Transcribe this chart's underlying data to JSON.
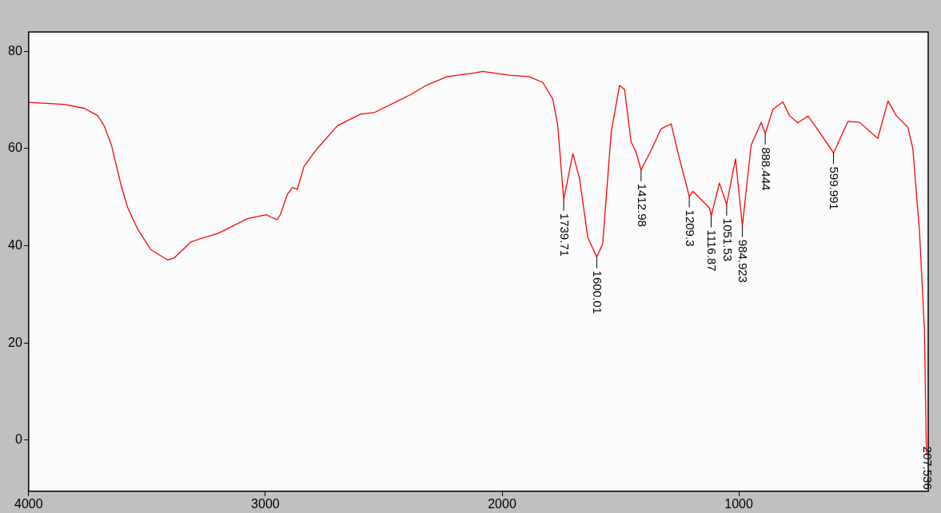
{
  "chart_data": {
    "type": "line",
    "xlim": [
      4000,
      200
    ],
    "ylim": [
      -10.5,
      84
    ],
    "xticks": [
      4000,
      3000,
      2000,
      1000
    ],
    "yticks": [
      0,
      20,
      40,
      60,
      80
    ],
    "grid": false,
    "legend": false,
    "marker": "none",
    "line_style": "solid",
    "series": [
      {
        "color": "#ff0000",
        "x": [
          4000,
          3850,
          3765,
          3709,
          3681,
          3650,
          3610,
          3582,
          3540,
          3484,
          3413,
          3385,
          3315,
          3273,
          3203,
          3132,
          3076,
          2994,
          2977,
          2949,
          2935,
          2907,
          2886,
          2865,
          2837,
          2781,
          2696,
          2598,
          2541,
          2387,
          2317,
          2232,
          2112,
          2082,
          1969,
          1885,
          1828,
          1786,
          1765,
          1739.71,
          1701,
          1673,
          1638,
          1600.01,
          1575,
          1539,
          1504,
          1483,
          1455,
          1434,
          1412.98,
          1370,
          1328,
          1286,
          1251,
          1209.3,
          1194,
          1124,
          1116.87,
          1082,
          1051.53,
          1014,
          984.923,
          948,
          906,
          888.444,
          856,
          814,
          786,
          751,
          708,
          659,
          599.991,
          539,
          490,
          413,
          370,
          335,
          286,
          265,
          237,
          216,
          207.536
        ],
        "values": [
          69.5,
          69.1,
          68.3,
          66.8,
          64.7,
          60.7,
          52.6,
          47.9,
          43.5,
          39.2,
          37.1,
          37.5,
          40.8,
          41.5,
          42.5,
          44.2,
          45.6,
          46.4,
          45.9,
          45.4,
          46.6,
          50.6,
          52.0,
          51.6,
          56.3,
          60.0,
          64.7,
          67.1,
          67.4,
          71.1,
          73.1,
          74.8,
          75.6,
          75.9,
          75.1,
          74.8,
          73.6,
          70.2,
          64.8,
          49.5,
          59.0,
          53.9,
          41.7,
          37.7,
          40.4,
          63.4,
          73.0,
          72.2,
          61.4,
          59.3,
          55.6,
          59.7,
          64.1,
          65.1,
          58.0,
          50.2,
          51.2,
          47.8,
          46.1,
          52.9,
          48.5,
          57.9,
          44.1,
          60.7,
          65.4,
          63.1,
          68.1,
          69.6,
          66.8,
          65.3,
          66.7,
          63.4,
          59.1,
          65.6,
          65.4,
          62.1,
          69.8,
          66.8,
          64.4,
          60.0,
          43.1,
          22.8,
          -3.0
        ]
      }
    ],
    "annotations": [
      {
        "text": "1739.71",
        "x": 1739.71,
        "y": 49.5
      },
      {
        "text": "1600.01",
        "x": 1600.01,
        "y": 37.7
      },
      {
        "text": "1412.98",
        "x": 1412.98,
        "y": 55.6
      },
      {
        "text": "1209.3",
        "x": 1209.3,
        "y": 50.2
      },
      {
        "text": "1116.87",
        "x": 1116.87,
        "y": 46.1
      },
      {
        "text": "1051.53",
        "x": 1051.53,
        "y": 48.5
      },
      {
        "text": "984.923",
        "x": 984.923,
        "y": 44.1
      },
      {
        "text": "888.444",
        "x": 888.444,
        "y": 63.1
      },
      {
        "text": "599.991",
        "x": 599.991,
        "y": 59.1
      },
      {
        "text": "207.536",
        "x": 207.536,
        "y": -3.0
      }
    ]
  }
}
